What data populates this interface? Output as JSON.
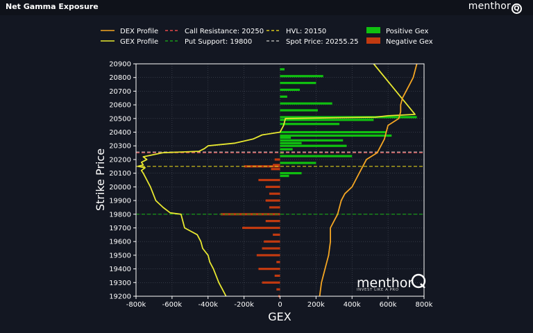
{
  "header": {
    "title": "Net Gamma Exposure",
    "brand": "menthor",
    "brand_q": "Q"
  },
  "watermark": {
    "brand": "menthor",
    "brand_q": "Q",
    "tagline": "INVEST LIKE A PRO"
  },
  "colors": {
    "background": "#131722",
    "dex": "#f5a623",
    "gex": "#e8e830",
    "call_resistance": "#e84a4a",
    "put_support": "#1a9a1a",
    "hvl": "#d9c91a",
    "spot": "#b0b0b0",
    "positive": "#10c010",
    "negative": "#c23a10",
    "axis": "#ffffff"
  },
  "chart_data": {
    "type": "bar",
    "orientation": "horizontal",
    "xlabel": "GEX",
    "ylabel": "Strike Price",
    "xlim": [
      -800000,
      800000
    ],
    "ylim": [
      19200,
      20900
    ],
    "xticks": [
      -800000,
      -600000,
      -400000,
      -200000,
      0,
      200000,
      400000,
      600000,
      800000
    ],
    "xtick_labels": [
      "-800k",
      "-600k",
      "-400k",
      "-200k",
      "0",
      "200k",
      "400k",
      "600k",
      "800k"
    ],
    "yticks": [
      19200,
      19300,
      19400,
      19500,
      19600,
      19700,
      19800,
      19900,
      20000,
      20100,
      20200,
      20300,
      20400,
      20500,
      20600,
      20700,
      20800,
      20900
    ],
    "grid": true,
    "legend": [
      {
        "label": "DEX Profile",
        "kind": "line",
        "color": "#f5a623",
        "dash": ""
      },
      {
        "label": "Call Resistance: 20250",
        "kind": "line",
        "color": "#e84a4a",
        "dash": "4,3"
      },
      {
        "label": "HVL: 20150",
        "kind": "line",
        "color": "#d9c91a",
        "dash": "4,3"
      },
      {
        "label": "Positive Gex",
        "kind": "box",
        "color": "#10c010"
      },
      {
        "label": "GEX Profile",
        "kind": "line",
        "color": "#e8e830",
        "dash": ""
      },
      {
        "label": "Put Support: 19800",
        "kind": "line",
        "color": "#1a9a1a",
        "dash": "4,3"
      },
      {
        "label": "Spot Price: 20255.25",
        "kind": "line",
        "color": "#b0b0b0",
        "dash": "4,3"
      },
      {
        "label": "Negative Gex",
        "kind": "box",
        "color": "#c23a10"
      }
    ],
    "levels": [
      {
        "name": "Call Resistance",
        "value": 20250,
        "color": "#e84a4a"
      },
      {
        "name": "Put Support",
        "value": 19800,
        "color": "#1a9a1a"
      },
      {
        "name": "HVL",
        "value": 20150,
        "color": "#d9c91a"
      },
      {
        "name": "Spot Price",
        "value": 20255.25,
        "color": "#b0b0b0"
      }
    ],
    "bars": [
      {
        "strike": 20860,
        "value": 25000
      },
      {
        "strike": 20810,
        "value": 240000
      },
      {
        "strike": 20760,
        "value": 200000
      },
      {
        "strike": 20710,
        "value": 110000
      },
      {
        "strike": 20660,
        "value": 40000
      },
      {
        "strike": 20610,
        "value": 290000
      },
      {
        "strike": 20560,
        "value": 210000
      },
      {
        "strike": 20510,
        "value": 760000
      },
      {
        "strike": 20490,
        "value": 520000
      },
      {
        "strike": 20460,
        "value": 330000
      },
      {
        "strike": 20400,
        "value": 590000
      },
      {
        "strike": 20375,
        "value": 620000
      },
      {
        "strike": 20360,
        "value": 60000
      },
      {
        "strike": 20340,
        "value": 350000
      },
      {
        "strike": 20320,
        "value": 120000
      },
      {
        "strike": 20300,
        "value": 370000
      },
      {
        "strike": 20275,
        "value": 70000
      },
      {
        "strike": 20250,
        "value": 20000
      },
      {
        "strike": 20225,
        "value": 400000
      },
      {
        "strike": 20200,
        "value": -30000
      },
      {
        "strike": 20175,
        "value": 200000
      },
      {
        "strike": 20160,
        "value": -40000
      },
      {
        "strike": 20150,
        "value": -200000
      },
      {
        "strike": 20130,
        "value": -50000
      },
      {
        "strike": 20100,
        "value": 120000
      },
      {
        "strike": 20080,
        "value": 50000
      },
      {
        "strike": 20050,
        "value": -120000
      },
      {
        "strike": 20000,
        "value": -80000
      },
      {
        "strike": 19950,
        "value": -60000
      },
      {
        "strike": 19900,
        "value": -80000
      },
      {
        "strike": 19850,
        "value": -60000
      },
      {
        "strike": 19800,
        "value": -330000
      },
      {
        "strike": 19750,
        "value": -80000
      },
      {
        "strike": 19700,
        "value": -210000
      },
      {
        "strike": 19650,
        "value": -40000
      },
      {
        "strike": 19600,
        "value": -90000
      },
      {
        "strike": 19550,
        "value": -100000
      },
      {
        "strike": 19500,
        "value": -130000
      },
      {
        "strike": 19450,
        "value": -20000
      },
      {
        "strike": 19400,
        "value": -120000
      },
      {
        "strike": 19350,
        "value": -30000
      },
      {
        "strike": 19300,
        "value": -100000
      },
      {
        "strike": 19250,
        "value": -20000
      },
      {
        "strike": 19200,
        "value": -10000
      }
    ],
    "series": [
      {
        "name": "GEX Profile",
        "color": "#e8e830",
        "points": [
          [
            -300000,
            19200
          ],
          [
            -320000,
            19250
          ],
          [
            -340000,
            19300
          ],
          [
            -370000,
            19400
          ],
          [
            -390000,
            19450
          ],
          [
            -400000,
            19500
          ],
          [
            -430000,
            19550
          ],
          [
            -440000,
            19600
          ],
          [
            -460000,
            19650
          ],
          [
            -530000,
            19700
          ],
          [
            -540000,
            19750
          ],
          [
            -550000,
            19800
          ],
          [
            -610000,
            19810
          ],
          [
            -650000,
            19850
          ],
          [
            -690000,
            19900
          ],
          [
            -720000,
            20000
          ],
          [
            -740000,
            20050
          ],
          [
            -760000,
            20100
          ],
          [
            -770000,
            20120
          ],
          [
            -750000,
            20140
          ],
          [
            -790000,
            20150
          ],
          [
            -760000,
            20160
          ],
          [
            -770000,
            20180
          ],
          [
            -740000,
            20200
          ],
          [
            -760000,
            20220
          ],
          [
            -650000,
            20250
          ],
          [
            -450000,
            20260
          ],
          [
            -420000,
            20280
          ],
          [
            -400000,
            20300
          ],
          [
            -250000,
            20320
          ],
          [
            -150000,
            20350
          ],
          [
            -100000,
            20380
          ],
          [
            0,
            20400
          ],
          [
            20000,
            20450
          ],
          [
            30000,
            20500
          ],
          [
            530000,
            20510
          ],
          [
            600000,
            20520
          ],
          [
            750000,
            20530
          ],
          [
            520000,
            20900
          ]
        ]
      },
      {
        "name": "DEX Profile",
        "color": "#f5a623",
        "points": [
          [
            220000,
            19200
          ],
          [
            230000,
            19300
          ],
          [
            250000,
            19400
          ],
          [
            270000,
            19500
          ],
          [
            280000,
            19600
          ],
          [
            280000,
            19700
          ],
          [
            300000,
            19750
          ],
          [
            320000,
            19800
          ],
          [
            330000,
            19850
          ],
          [
            340000,
            19900
          ],
          [
            360000,
            19950
          ],
          [
            400000,
            20000
          ],
          [
            420000,
            20050
          ],
          [
            440000,
            20100
          ],
          [
            460000,
            20150
          ],
          [
            480000,
            20200
          ],
          [
            540000,
            20250
          ],
          [
            560000,
            20300
          ],
          [
            580000,
            20350
          ],
          [
            590000,
            20400
          ],
          [
            600000,
            20450
          ],
          [
            660000,
            20500
          ],
          [
            670000,
            20550
          ],
          [
            670000,
            20600
          ],
          [
            680000,
            20650
          ],
          [
            700000,
            20700
          ],
          [
            720000,
            20750
          ],
          [
            740000,
            20800
          ],
          [
            750000,
            20850
          ],
          [
            760000,
            20900
          ]
        ]
      }
    ]
  }
}
